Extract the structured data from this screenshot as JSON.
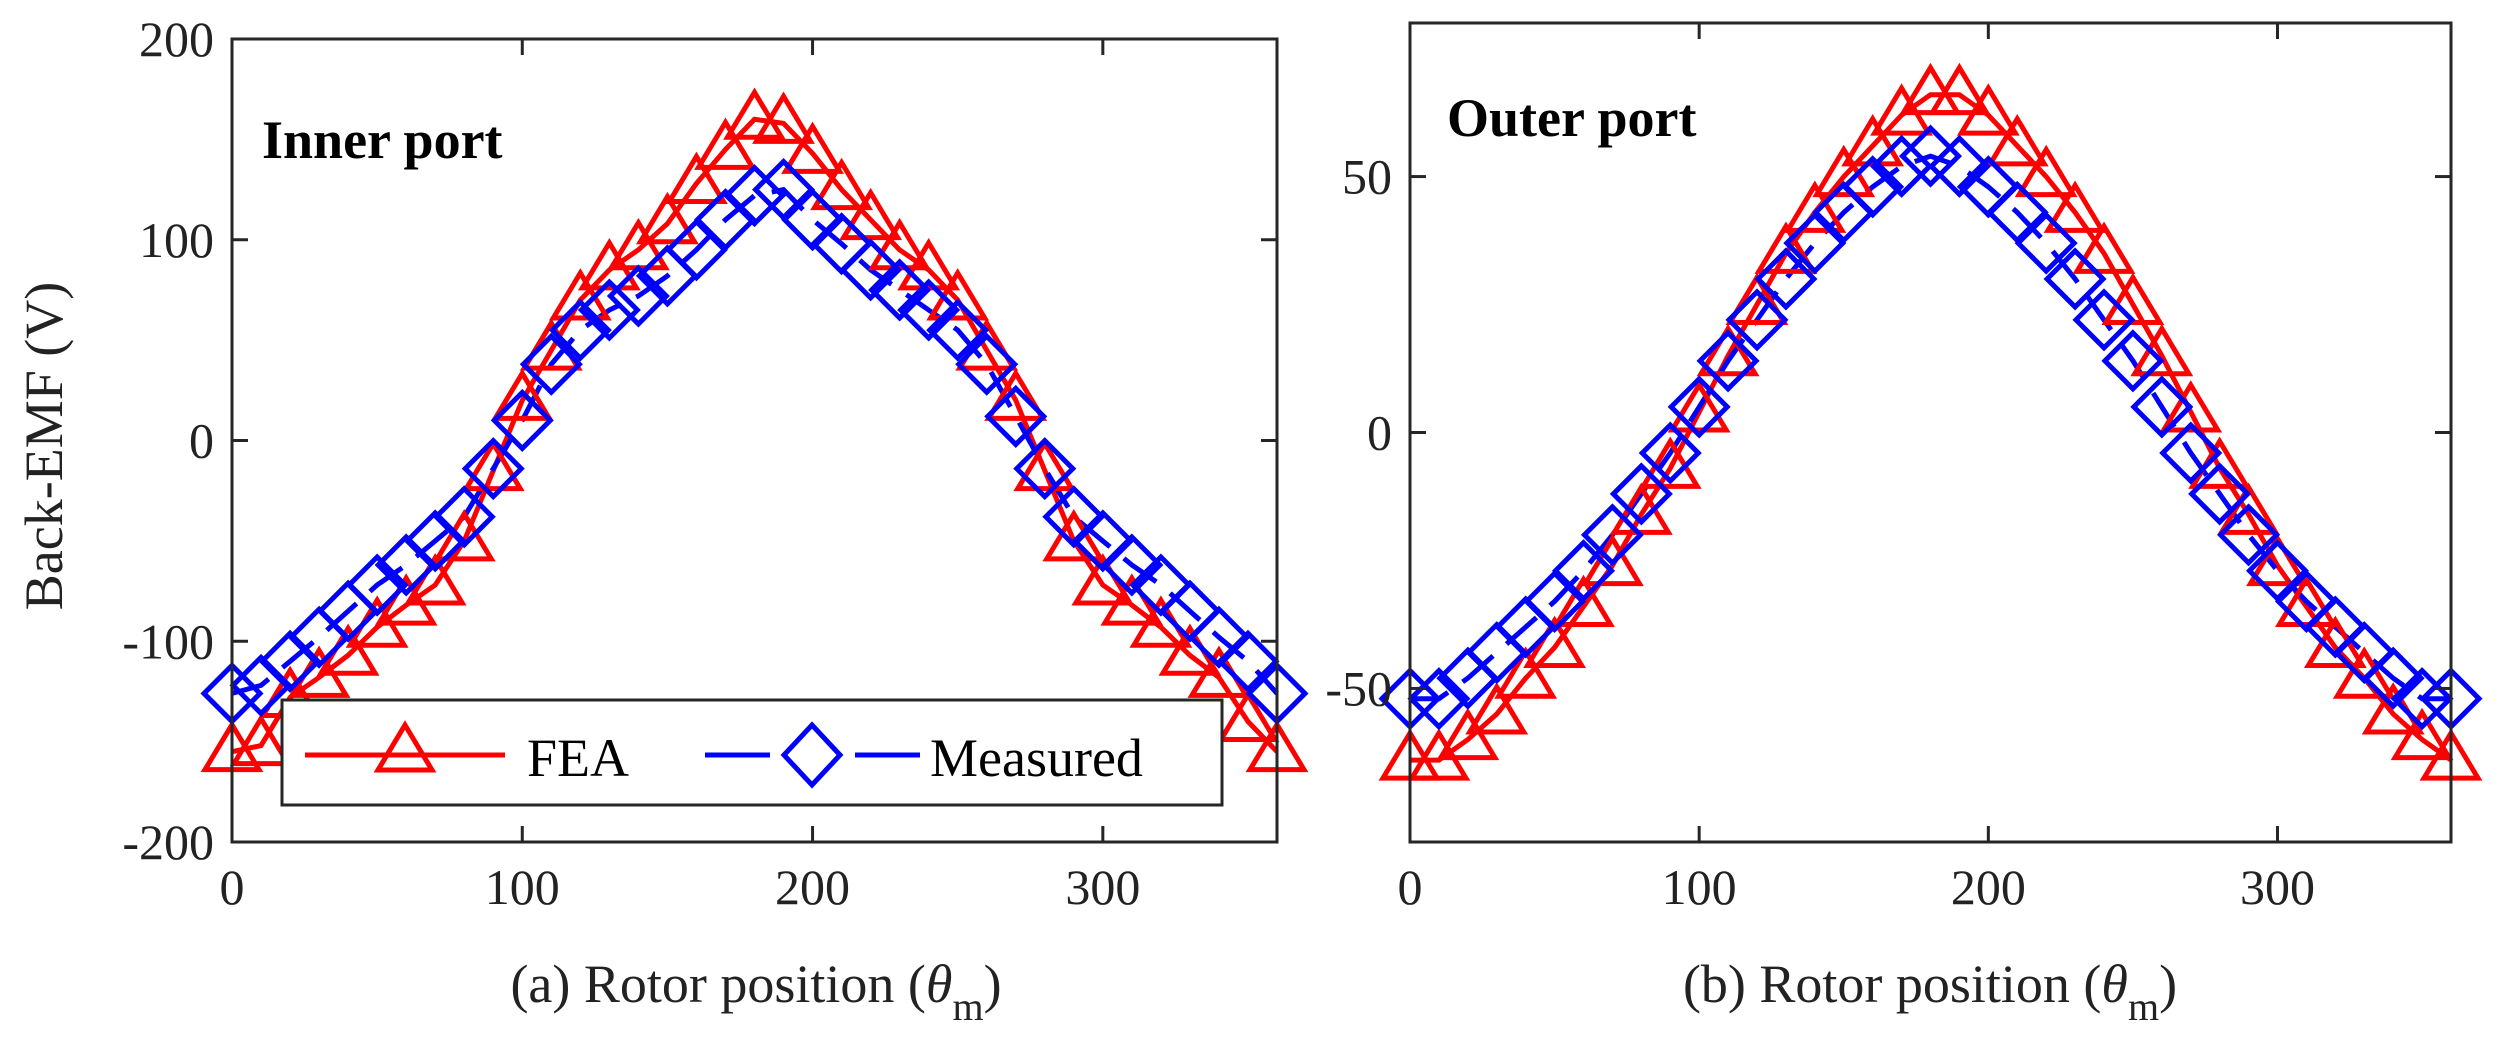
{
  "chart_data": [
    {
      "type": "line",
      "panel_label": "(a) Rotor position (",
      "xlabel_symbol": "θ",
      "xlabel_subscript": "m",
      "xlabel_close": ")",
      "ylabel": "Back-EMF (V)",
      "annotation": "Inner port",
      "xlim": [
        0,
        360
      ],
      "ylim": [
        -200,
        200
      ],
      "xticks": [
        0,
        100,
        200,
        300
      ],
      "yticks": [
        -200,
        -100,
        0,
        100,
        200
      ],
      "series": [
        {
          "name": "FEA",
          "color": "#ff0000",
          "marker": "triangle",
          "x": [
            0,
            10,
            20,
            30,
            40,
            50,
            60,
            70,
            80,
            90,
            100,
            110,
            120,
            130,
            140,
            150,
            160,
            170,
            180,
            190,
            200,
            210,
            220,
            230,
            240,
            250,
            260,
            270,
            280,
            290,
            300,
            310,
            320,
            330,
            340,
            350,
            360
          ],
          "y": [
            -155,
            -152,
            -128,
            -118,
            -107,
            -93,
            -82,
            -72,
            -50,
            -15,
            20,
            45,
            70,
            85,
            95,
            108,
            128,
            145,
            160,
            158,
            143,
            125,
            110,
            95,
            85,
            70,
            45,
            20,
            -15,
            -50,
            -72,
            -82,
            -93,
            -107,
            -118,
            -140,
            -155
          ]
        },
        {
          "name": "Measured",
          "color": "#0000ff",
          "marker": "diamond",
          "x": [
            0,
            10,
            20,
            30,
            40,
            50,
            60,
            70,
            80,
            90,
            100,
            110,
            120,
            130,
            140,
            150,
            160,
            170,
            180,
            190,
            200,
            210,
            220,
            230,
            240,
            250,
            260,
            270,
            280,
            290,
            300,
            310,
            320,
            330,
            340,
            350,
            360
          ],
          "y": [
            -126,
            -122,
            -110,
            -98,
            -85,
            -72,
            -62,
            -50,
            -38,
            -14,
            10,
            38,
            55,
            65,
            72,
            82,
            95,
            110,
            122,
            125,
            110,
            98,
            85,
            75,
            65,
            55,
            38,
            12,
            -14,
            -38,
            -50,
            -62,
            -72,
            -85,
            -98,
            -110,
            -126
          ]
        }
      ],
      "legend": {
        "placement": "bottom-center",
        "entries": [
          "FEA",
          "Measured"
        ]
      }
    },
    {
      "type": "line",
      "panel_label": "(b) Rotor position (",
      "xlabel_symbol": "θ",
      "xlabel_subscript": "m",
      "xlabel_close": ")",
      "ylabel": "",
      "annotation": "Outer port",
      "xlim": [
        0,
        360
      ],
      "ylim": [
        -80,
        80
      ],
      "xticks": [
        0,
        100,
        200,
        300
      ],
      "yticks": [
        -50,
        0,
        50
      ],
      "series": [
        {
          "name": "FEA",
          "color": "#ff0000",
          "marker": "triangle",
          "x": [
            0,
            10,
            20,
            30,
            40,
            50,
            60,
            70,
            80,
            90,
            100,
            110,
            120,
            130,
            140,
            150,
            160,
            170,
            180,
            190,
            200,
            210,
            220,
            230,
            240,
            250,
            260,
            270,
            280,
            290,
            300,
            310,
            320,
            330,
            340,
            350,
            360
          ],
          "y": [
            -64,
            -64,
            -60,
            -55,
            -48,
            -42,
            -34,
            -26,
            -16,
            -7,
            4,
            15,
            25,
            35,
            43,
            50,
            56,
            62,
            66,
            66,
            62,
            56,
            50,
            43,
            35,
            25,
            15,
            4,
            -7,
            -16,
            -26,
            -34,
            -42,
            -48,
            -55,
            -60,
            -64
          ]
        },
        {
          "name": "Measured",
          "color": "#0000ff",
          "marker": "diamond",
          "x": [
            0,
            10,
            20,
            30,
            40,
            50,
            60,
            70,
            80,
            90,
            100,
            110,
            120,
            130,
            140,
            150,
            160,
            170,
            180,
            190,
            200,
            210,
            220,
            230,
            240,
            250,
            260,
            270,
            280,
            290,
            300,
            310,
            320,
            330,
            340,
            350,
            360
          ],
          "y": [
            -52,
            -52,
            -48,
            -43,
            -38,
            -33,
            -27,
            -20,
            -12,
            -4,
            5,
            14,
            22,
            30,
            37,
            43,
            48,
            52,
            54,
            52,
            48,
            43,
            37,
            30,
            22,
            14,
            5,
            -4,
            -12,
            -20,
            -27,
            -33,
            -38,
            -43,
            -48,
            -52,
            -52
          ]
        }
      ]
    }
  ]
}
